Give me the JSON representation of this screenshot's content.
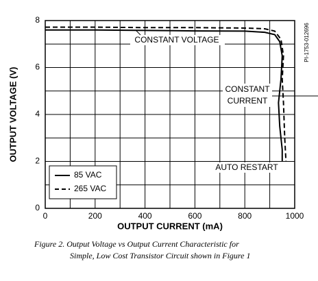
{
  "chart_data": {
    "type": "line",
    "xlabel": "OUTPUT CURRENT (mA)",
    "ylabel": "OUTPUT VOLTAGE (V)",
    "xlim": [
      0,
      1000
    ],
    "xticks": [
      0,
      200,
      400,
      600,
      800,
      1000
    ],
    "x_minor_ticks": [
      100,
      300,
      500,
      700,
      900
    ],
    "ylim": [
      0,
      8
    ],
    "yticks": [
      0,
      2,
      4,
      6,
      8
    ],
    "y_minor_ticks": [
      1,
      3,
      5,
      7
    ],
    "grid": true,
    "legend": "lower left",
    "series": [
      {
        "name": "85 VAC",
        "color": "#000000",
        "dash": false,
        "x": [
          0,
          200,
          400,
          600,
          800,
          880,
          920,
          940,
          950,
          945,
          935,
          940,
          950,
          950
        ],
        "values": [
          7.6,
          7.6,
          7.58,
          7.56,
          7.55,
          7.5,
          7.4,
          7.1,
          6.5,
          5.5,
          4.5,
          3.5,
          2.5,
          2.0
        ]
      },
      {
        "name": "265 VAC",
        "color": "#000000",
        "dash": true,
        "x": [
          0,
          200,
          400,
          600,
          800,
          880,
          920,
          945,
          955,
          950,
          955,
          960,
          965
        ],
        "values": [
          7.72,
          7.72,
          7.7,
          7.7,
          7.68,
          7.65,
          7.55,
          7.2,
          6.5,
          5.5,
          4.5,
          3.0,
          2.0
        ]
      }
    ],
    "annotations": [
      "CONSTANT VOLTAGE",
      "CONSTANT",
      "CURRENT",
      "AUTO RESTART",
      "PI-1753-012696"
    ],
    "caption": [
      "Figure 2. Output Voltage vs  Output Current  Characteristic for",
      "Simple, Low Cost Transistor Circuit shown in Figure 1"
    ]
  }
}
